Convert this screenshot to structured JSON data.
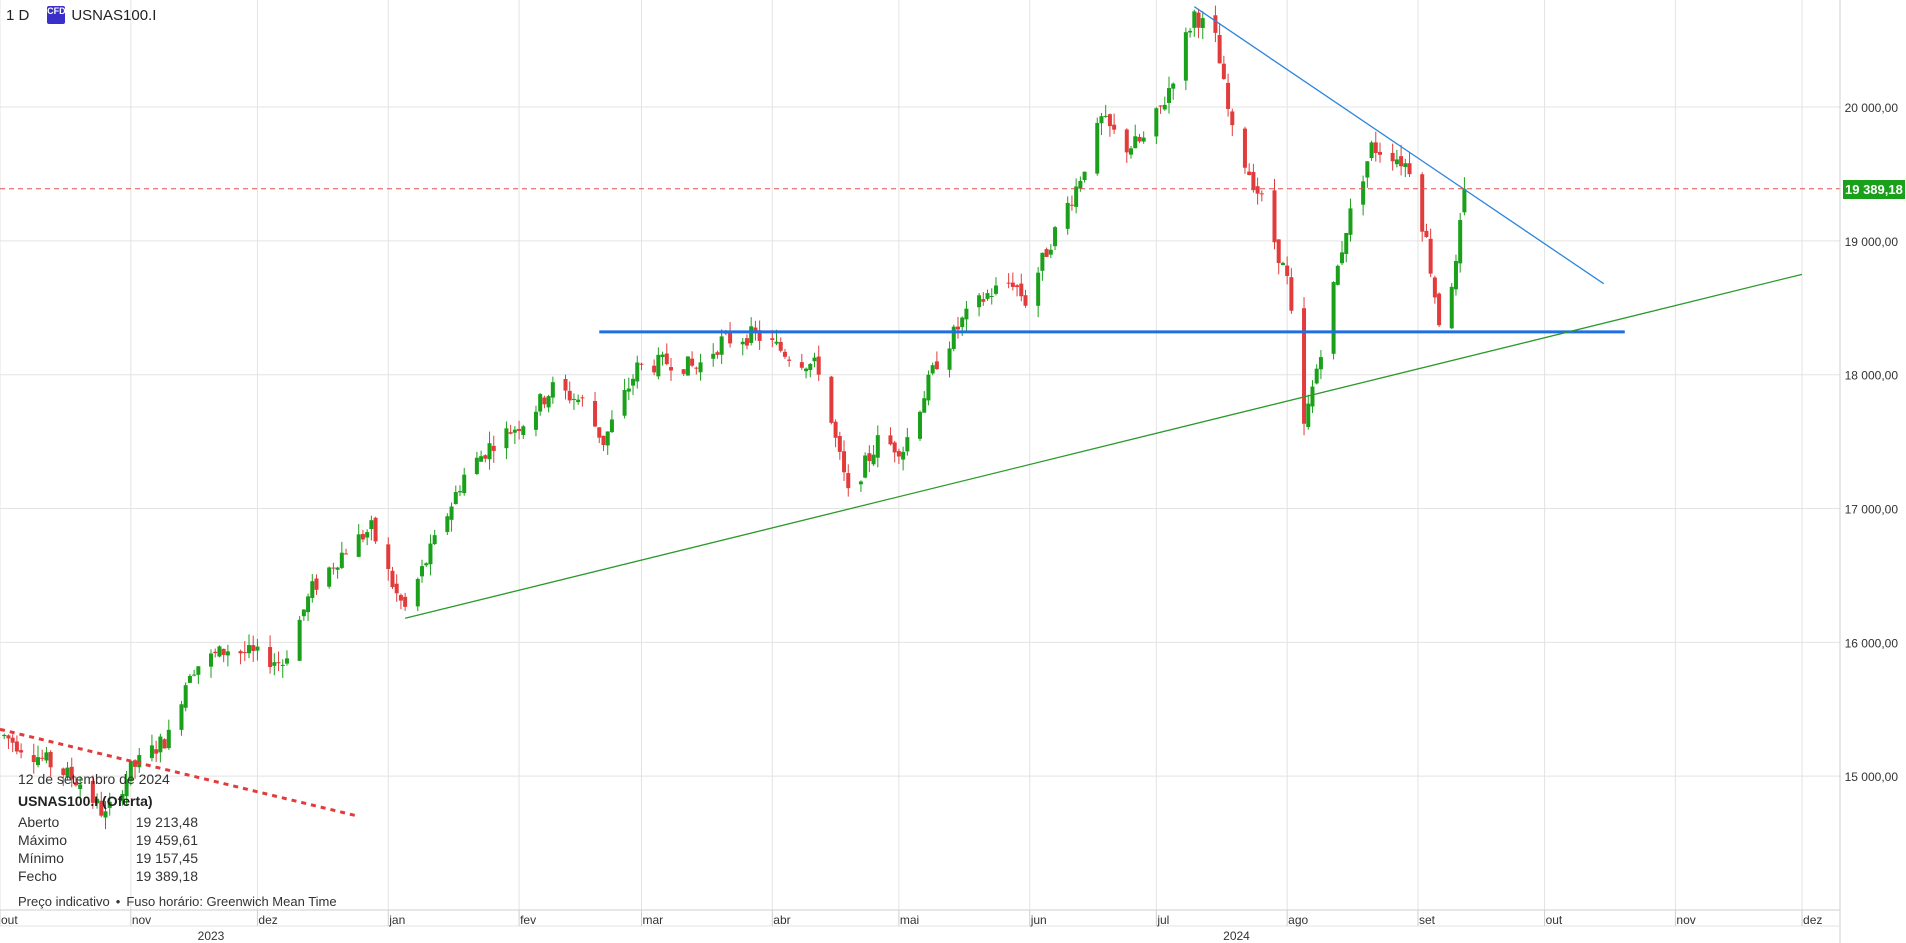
{
  "header": {
    "timeframe": "1 D",
    "badge": "CFD",
    "symbol": "USNAS100.I"
  },
  "info_panel": {
    "date": "12 de setembro de 2024",
    "instrument": "USNAS100.I (Oferta)",
    "rows": [
      {
        "label": "Aberto",
        "value": "19 213,48"
      },
      {
        "label": "Máximo",
        "value": "19 459,61"
      },
      {
        "label": "Mínimo",
        "value": "19 157,45"
      },
      {
        "label": "Fecho",
        "value": "19 389,18"
      }
    ]
  },
  "footer": {
    "indicative": "Preço indicativo",
    "timezone": "Fuso horário: Greenwich Mean Time"
  },
  "current_price_label": "19 389,18",
  "colors": {
    "up": "#1aa01a",
    "down": "#e23b3b",
    "grid": "#e3e3e3",
    "trend_down": "#2e86de",
    "support": "#1f6fe0",
    "trend_up": "#2b9a2b",
    "price_line": "#e05050"
  },
  "chart_data": {
    "type": "candlestick",
    "title": "",
    "yrange": [
      14000,
      20800
    ],
    "y_ticks": [
      {
        "value": 15000,
        "label": "15 000,00"
      },
      {
        "value": 16000,
        "label": "16 000,00"
      },
      {
        "value": 17000,
        "label": "17 000,00"
      },
      {
        "value": 18000,
        "label": "18 000,00"
      },
      {
        "value": 19000,
        "label": "19 000,00"
      },
      {
        "value": 20000,
        "label": "20 000,00"
      }
    ],
    "x_ticks": [
      {
        "date": "2023-10-01",
        "label": "out"
      },
      {
        "date": "2023-11-01",
        "label": "nov"
      },
      {
        "date": "2023-12-01",
        "label": "dez"
      },
      {
        "date": "2024-01-01",
        "label": "jan"
      },
      {
        "date": "2024-02-01",
        "label": "fev"
      },
      {
        "date": "2024-03-01",
        "label": "mar"
      },
      {
        "date": "2024-04-01",
        "label": "abr"
      },
      {
        "date": "2024-05-01",
        "label": "mai"
      },
      {
        "date": "2024-06-01",
        "label": "jun"
      },
      {
        "date": "2024-07-01",
        "label": "jul"
      },
      {
        "date": "2024-08-01",
        "label": "ago"
      },
      {
        "date": "2024-09-01",
        "label": "set"
      },
      {
        "date": "2024-10-01",
        "label": "out"
      },
      {
        "date": "2024-11-01",
        "label": "nov"
      },
      {
        "date": "2024-12-01",
        "label": "dez"
      }
    ],
    "year_labels": [
      {
        "date": "2023-11-20",
        "label": "2023"
      },
      {
        "date": "2024-07-20",
        "label": "2024"
      }
    ],
    "x_start": "2023-10-01",
    "x_end": "2024-12-10",
    "anchors": [
      [
        "2023-10-02",
        15300
      ],
      [
        "2023-10-10",
        15150
      ],
      [
        "2023-10-20",
        14950
      ],
      [
        "2023-10-26",
        14700
      ],
      [
        "2023-11-01",
        15050
      ],
      [
        "2023-11-10",
        15300
      ],
      [
        "2023-11-15",
        15800
      ],
      [
        "2023-11-24",
        15950
      ],
      [
        "2023-12-01",
        15900
      ],
      [
        "2023-12-07",
        15850
      ],
      [
        "2023-12-14",
        16400
      ],
      [
        "2023-12-22",
        16700
      ],
      [
        "2023-12-28",
        16850
      ],
      [
        "2024-01-03",
        16350
      ],
      [
        "2024-01-05",
        16250
      ],
      [
        "2024-01-12",
        16750
      ],
      [
        "2024-01-19",
        17250
      ],
      [
        "2024-01-26",
        17500
      ],
      [
        "2024-02-02",
        17650
      ],
      [
        "2024-02-09",
        17900
      ],
      [
        "2024-02-16",
        17800
      ],
      [
        "2024-02-21",
        17500
      ],
      [
        "2024-02-29",
        18050
      ],
      [
        "2024-03-08",
        18100
      ],
      [
        "2024-03-14",
        18050
      ],
      [
        "2024-03-20",
        18250
      ],
      [
        "2024-03-28",
        18300
      ],
      [
        "2024-04-05",
        18150
      ],
      [
        "2024-04-12",
        18050
      ],
      [
        "2024-04-19",
        17100
      ],
      [
        "2024-04-26",
        17500
      ],
      [
        "2024-05-02",
        17450
      ],
      [
        "2024-05-10",
        18100
      ],
      [
        "2024-05-16",
        18400
      ],
      [
        "2024-05-22",
        18600
      ],
      [
        "2024-05-28",
        18700
      ],
      [
        "2024-05-31",
        18550
      ],
      [
        "2024-06-06",
        19000
      ],
      [
        "2024-06-12",
        19400
      ],
      [
        "2024-06-18",
        19900
      ],
      [
        "2024-06-24",
        19700
      ],
      [
        "2024-06-28",
        19750
      ],
      [
        "2024-07-03",
        20050
      ],
      [
        "2024-07-10",
        20700
      ],
      [
        "2024-07-15",
        20500
      ],
      [
        "2024-07-19",
        19800
      ],
      [
        "2024-07-26",
        19300
      ],
      [
        "2024-08-01",
        18700
      ],
      [
        "2024-08-05",
        17600
      ],
      [
        "2024-08-09",
        18200
      ],
      [
        "2024-08-15",
        19100
      ],
      [
        "2024-08-21",
        19700
      ],
      [
        "2024-08-26",
        19650
      ],
      [
        "2024-08-30",
        19550
      ],
      [
        "2024-09-03",
        19000
      ],
      [
        "2024-09-06",
        18400
      ],
      [
        "2024-09-10",
        18800
      ],
      [
        "2024-09-12",
        19389
      ]
    ],
    "last_candle": {
      "date": "2024-09-12",
      "open": 19213.48,
      "high": 19459.61,
      "low": 19157.45,
      "close": 19389.18
    },
    "lines": [
      {
        "name": "support",
        "points": [
          [
            "2024-02-20",
            18320
          ],
          [
            "2024-10-20",
            18320
          ]
        ]
      },
      {
        "name": "downtrend",
        "points": [
          [
            "2024-07-10",
            20750
          ],
          [
            "2024-10-15",
            18680
          ]
        ]
      },
      {
        "name": "uptrend",
        "points": [
          [
            "2024-01-05",
            16180
          ],
          [
            "2024-12-01",
            18750
          ]
        ]
      },
      {
        "name": "old-downtrend",
        "points": [
          [
            "2023-10-01",
            15350
          ],
          [
            "2023-12-25",
            14700
          ]
        ]
      }
    ],
    "price_level": 19389.18
  }
}
